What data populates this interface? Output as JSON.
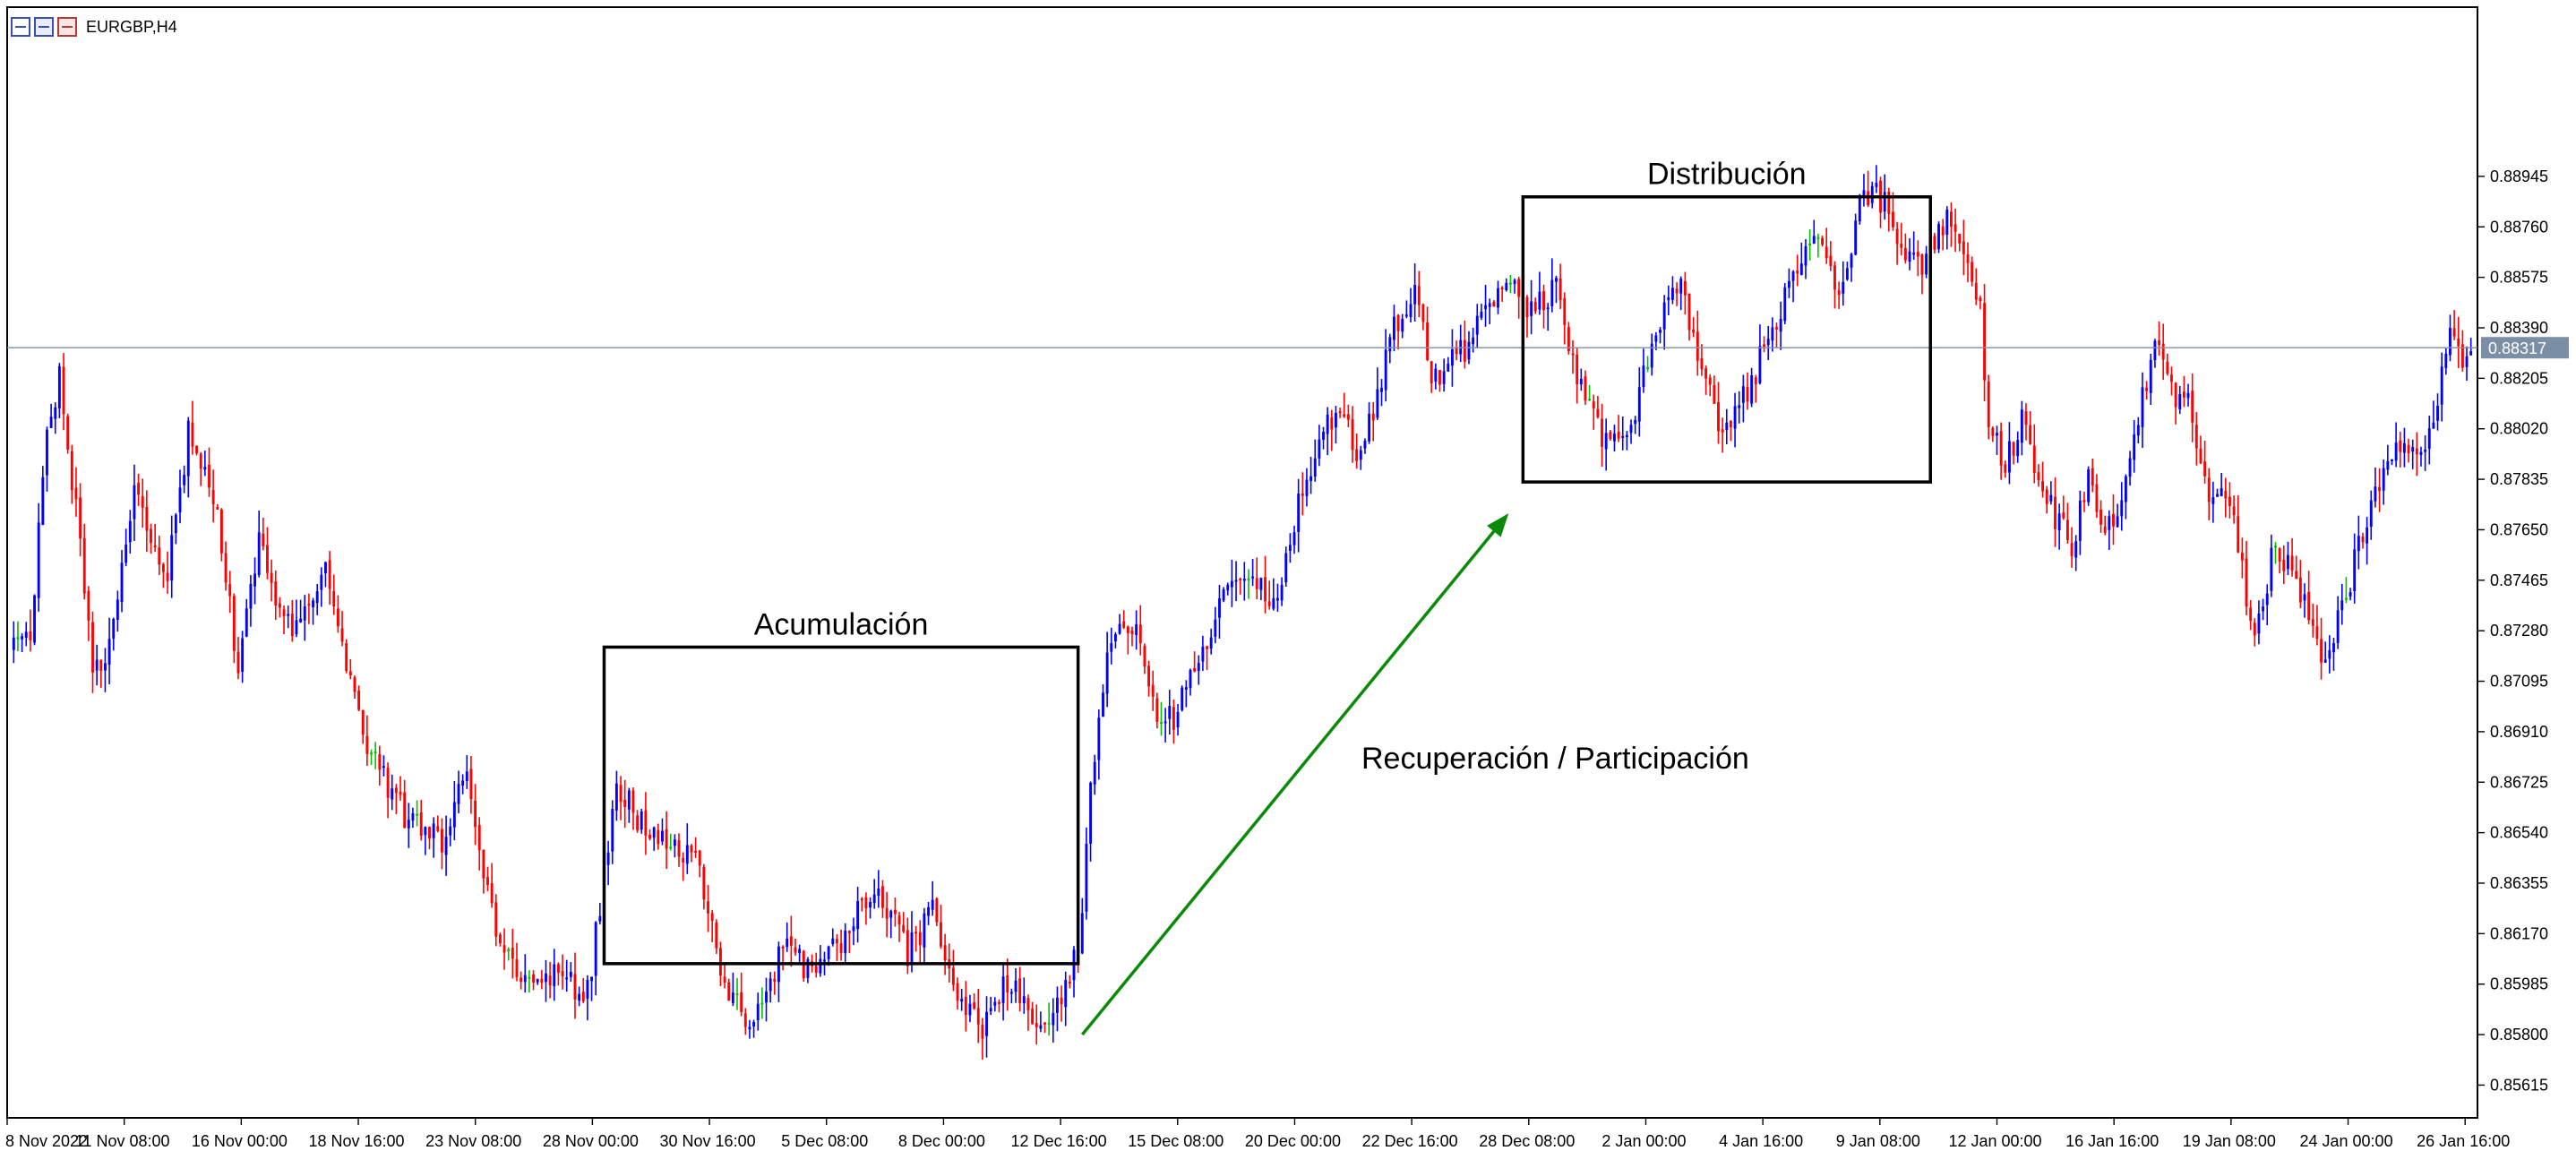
{
  "symbol": "EURGBP,H4",
  "current_price_label": "0.88317",
  "colors": {
    "bull": "#0000ff",
    "bear": "#ff0000",
    "doji": "#00c000",
    "arrow": "#0a8a0a",
    "grid_line": "#7a8fa6",
    "box": "#000000"
  },
  "annotations": {
    "accumulation": "Acumulación",
    "distribution": "Distribución",
    "recovery": "Recuperación / Participación"
  },
  "chart_data": {
    "type": "candlestick",
    "title": "EURGBP,H4",
    "timeframe": "H4",
    "ylim": [
      0.85495,
      0.89565
    ],
    "current_price": 0.88317,
    "y_ticks": [
      "0.88945",
      "0.88760",
      "0.88575",
      "0.88390",
      "0.88205",
      "0.88020",
      "0.87835",
      "0.87650",
      "0.87465",
      "0.87280",
      "0.87095",
      "0.86910",
      "0.86725",
      "0.86540",
      "0.86355",
      "0.86170",
      "0.85985",
      "0.85800",
      "0.85615"
    ],
    "x_ticks": [
      "8 Nov 2022",
      "11 Nov 08:00",
      "16 Nov 00:00",
      "18 Nov 16:00",
      "23 Nov 08:00",
      "28 Nov 00:00",
      "30 Nov 16:00",
      "5 Dec 08:00",
      "8 Dec 00:00",
      "12 Dec 16:00",
      "15 Dec 08:00",
      "20 Dec 00:00",
      "22 Dec 16:00",
      "28 Dec 08:00",
      "2 Jan 00:00",
      "4 Jan 16:00",
      "9 Jan 08:00",
      "12 Jan 00:00",
      "16 Jan 16:00",
      "19 Jan 08:00",
      "24 Jan 00:00",
      "26 Jan 16:00"
    ],
    "price_path": [
      [
        0,
        0.872
      ],
      [
        5,
        0.8725
      ],
      [
        9,
        0.88
      ],
      [
        12,
        0.882
      ],
      [
        15,
        0.8785
      ],
      [
        20,
        0.8715
      ],
      [
        24,
        0.872
      ],
      [
        30,
        0.878
      ],
      [
        38,
        0.875
      ],
      [
        43,
        0.88
      ],
      [
        50,
        0.877
      ],
      [
        55,
        0.8715
      ],
      [
        60,
        0.876
      ],
      [
        68,
        0.8725
      ],
      [
        76,
        0.875
      ],
      [
        85,
        0.869
      ],
      [
        95,
        0.866
      ],
      [
        104,
        0.865
      ],
      [
        110,
        0.8675
      ],
      [
        118,
        0.861
      ],
      [
        126,
        0.8595
      ],
      [
        132,
        0.8605
      ],
      [
        138,
        0.859
      ],
      [
        140,
        0.8605
      ],
      [
        146,
        0.867
      ],
      [
        156,
        0.865
      ],
      [
        165,
        0.8645
      ],
      [
        172,
        0.86
      ],
      [
        178,
        0.8583
      ],
      [
        186,
        0.8612
      ],
      [
        194,
        0.86
      ],
      [
        202,
        0.862
      ],
      [
        208,
        0.8635
      ],
      [
        216,
        0.861
      ],
      [
        222,
        0.8625
      ],
      [
        228,
        0.859
      ],
      [
        234,
        0.8583
      ],
      [
        240,
        0.86
      ],
      [
        246,
        0.8585
      ],
      [
        250,
        0.858
      ],
      [
        254,
        0.86
      ],
      [
        257,
        0.861
      ],
      [
        260,
        0.867
      ],
      [
        264,
        0.872
      ],
      [
        270,
        0.873
      ],
      [
        276,
        0.87
      ],
      [
        280,
        0.8695
      ],
      [
        286,
        0.872
      ],
      [
        292,
        0.874
      ],
      [
        298,
        0.875
      ],
      [
        304,
        0.8735
      ],
      [
        310,
        0.8775
      ],
      [
        316,
        0.88
      ],
      [
        320,
        0.881
      ],
      [
        324,
        0.8795
      ],
      [
        328,
        0.8805
      ],
      [
        332,
        0.8835
      ],
      [
        338,
        0.8855
      ],
      [
        342,
        0.882
      ],
      [
        348,
        0.8828
      ],
      [
        354,
        0.884
      ],
      [
        360,
        0.886
      ],
      [
        366,
        0.8845
      ],
      [
        372,
        0.8855
      ],
      [
        378,
        0.8815
      ],
      [
        384,
        0.8795
      ],
      [
        390,
        0.88
      ],
      [
        396,
        0.884
      ],
      [
        402,
        0.8855
      ],
      [
        408,
        0.882
      ],
      [
        412,
        0.88
      ],
      [
        418,
        0.8815
      ],
      [
        424,
        0.884
      ],
      [
        430,
        0.886
      ],
      [
        434,
        0.8875
      ],
      [
        436,
        0.8865
      ],
      [
        440,
        0.885
      ],
      [
        446,
        0.889
      ],
      [
        452,
        0.8885
      ],
      [
        456,
        0.8865
      ],
      [
        460,
        0.886
      ],
      [
        466,
        0.888
      ],
      [
        470,
        0.887
      ],
      [
        474,
        0.8845
      ],
      [
        476,
        0.8805
      ],
      [
        480,
        0.879
      ],
      [
        484,
        0.8805
      ],
      [
        490,
        0.8775
      ],
      [
        496,
        0.876
      ],
      [
        500,
        0.8785
      ],
      [
        504,
        0.8765
      ],
      [
        508,
        0.8775
      ],
      [
        512,
        0.8805
      ],
      [
        516,
        0.8835
      ],
      [
        520,
        0.8815
      ],
      [
        524,
        0.881
      ],
      [
        528,
        0.878
      ],
      [
        534,
        0.8775
      ],
      [
        540,
        0.8725
      ],
      [
        545,
        0.876
      ],
      [
        552,
        0.874
      ],
      [
        556,
        0.872
      ],
      [
        560,
        0.873
      ],
      [
        566,
        0.8765
      ],
      [
        570,
        0.878
      ],
      [
        574,
        0.88
      ],
      [
        578,
        0.879
      ],
      [
        582,
        0.88
      ],
      [
        587,
        0.8835
      ],
      [
        591,
        0.8826
      ]
    ],
    "generated_bars": 592,
    "boxes": [
      {
        "name": "Acumulación",
        "bar_from": 142,
        "bar_to": 256,
        "price_from": 0.8606,
        "price_to": 0.8722
      },
      {
        "name": "Distribución",
        "bar_from": 363,
        "bar_to": 461,
        "price_from": 0.87825,
        "price_to": 0.8887
      }
    ],
    "arrow": {
      "label": "Recuperación / Participación",
      "bar_from": 257,
      "price_from": 0.858,
      "bar_to": 359,
      "price_to": 0.877
    }
  }
}
